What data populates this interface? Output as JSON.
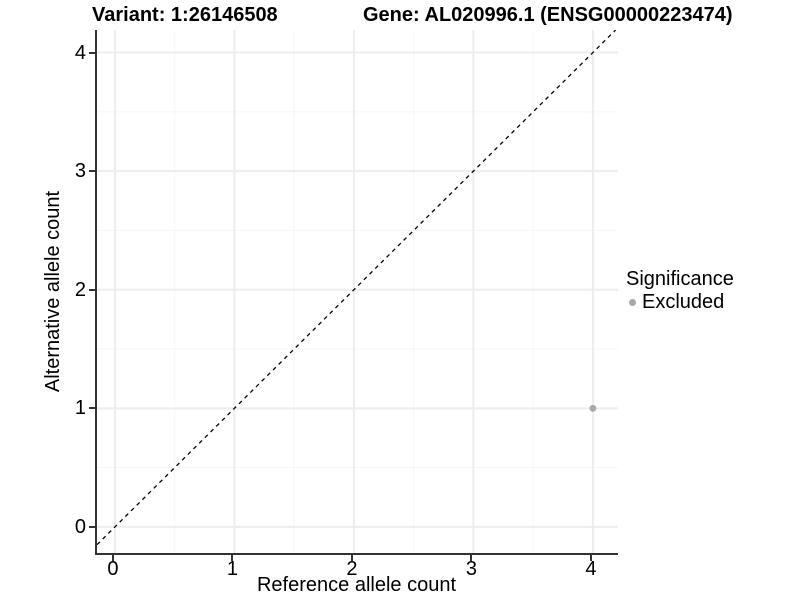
{
  "titles": {
    "variant": "Variant: 1:26146508",
    "gene": "Gene: AL020996.1 (ENSG00000223474)"
  },
  "axes": {
    "x": {
      "label": "Reference allele count"
    },
    "y": {
      "label": "Alternative allele count"
    }
  },
  "legend": {
    "title": "Significance",
    "items": [
      {
        "label": "Excluded",
        "color": "#A8A8A8"
      }
    ]
  },
  "colors": {
    "axis_line": "#333333",
    "grid_major": "#EDEDED",
    "grid_minor": "#F6F6F6",
    "point": "#A8A8A8",
    "reference_line": "#000000",
    "background": "#FFFFFF"
  },
  "chart_data": {
    "type": "scatter",
    "title": "Variant: 1:26146508    Gene: AL020996.1 (ENSG00000223474)",
    "xlabel": "Reference allele count",
    "ylabel": "Alternative allele count",
    "xlim": [
      -0.15,
      4.21
    ],
    "ylim": [
      -0.22,
      4.19
    ],
    "x_ticks": [
      0,
      1,
      2,
      3,
      4
    ],
    "y_ticks": [
      0,
      1,
      2,
      3,
      4
    ],
    "x_minor_ticks": [
      0.5,
      1.5,
      2.5,
      3.5
    ],
    "y_minor_ticks": [
      0.5,
      1.5,
      2.5,
      3.5
    ],
    "grid": true,
    "legend_position": "right",
    "series": [
      {
        "name": "Excluded",
        "color": "#A8A8A8",
        "points": [
          {
            "x": 4,
            "y": 1
          }
        ],
        "point_radius": 3.4
      }
    ],
    "reference_line": {
      "slope": 1,
      "intercept": 0,
      "style": "dashed",
      "color": "#000000"
    }
  }
}
